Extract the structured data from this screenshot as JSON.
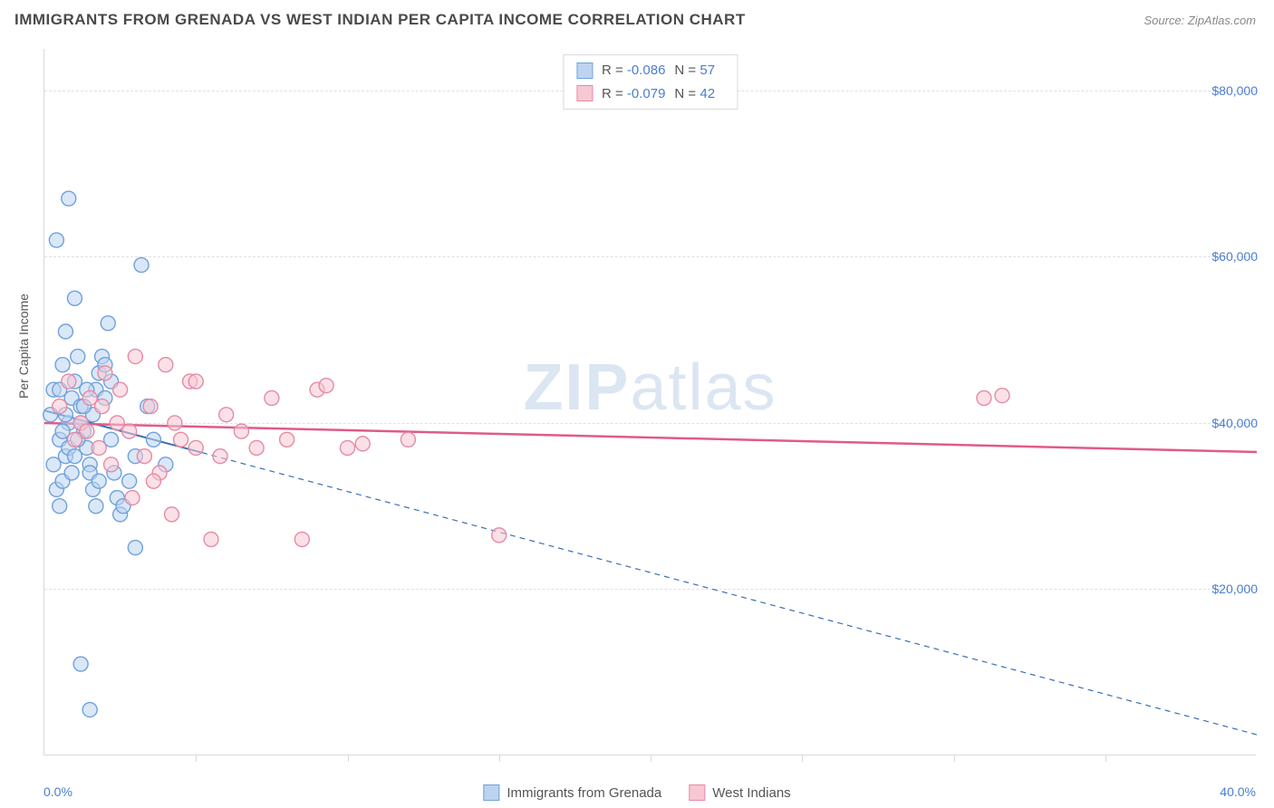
{
  "header": {
    "title": "IMMIGRANTS FROM GRENADA VS WEST INDIAN PER CAPITA INCOME CORRELATION CHART",
    "source": "Source: ZipAtlas.com"
  },
  "watermark": {
    "bold": "ZIP",
    "light": "atlas"
  },
  "chart": {
    "type": "scatter",
    "background_color": "#ffffff",
    "grid_color": "#e0e0e0",
    "axis_color": "#d9d9d9",
    "yaxis_title": "Per Capita Income",
    "xlim": [
      0,
      40
    ],
    "ylim": [
      0,
      85000
    ],
    "yticks": [
      {
        "v": 20000,
        "label": "$20,000"
      },
      {
        "v": 40000,
        "label": "$40,000"
      },
      {
        "v": 60000,
        "label": "$60,000"
      },
      {
        "v": 80000,
        "label": "$80,000"
      }
    ],
    "xticks_minor": [
      5,
      10,
      15,
      20,
      25,
      30,
      35
    ],
    "xaxis_labels": [
      {
        "v": 0,
        "label": "0.0%",
        "align": "left"
      },
      {
        "v": 40,
        "label": "40.0%",
        "align": "right"
      }
    ],
    "label_color": "#4a7dd1",
    "label_fontsize": 14,
    "marker_radius": 8,
    "marker_stroke_width": 1.4,
    "series": [
      {
        "id": "grenada",
        "name": "Immigrants from Grenada",
        "fill": "#bcd4f0",
        "stroke": "#6fa1dc",
        "fill_opacity": 0.55,
        "points": [
          [
            0.2,
            41000
          ],
          [
            0.3,
            44000
          ],
          [
            0.4,
            62000
          ],
          [
            0.5,
            38000
          ],
          [
            0.6,
            47000
          ],
          [
            0.7,
            51000
          ],
          [
            0.8,
            67000
          ],
          [
            0.3,
            35000
          ],
          [
            0.4,
            32000
          ],
          [
            0.5,
            30000
          ],
          [
            0.6,
            33000
          ],
          [
            0.7,
            36000
          ],
          [
            0.8,
            40000
          ],
          [
            0.9,
            43000
          ],
          [
            1.0,
            45000
          ],
          [
            1.1,
            48000
          ],
          [
            1.2,
            42000
          ],
          [
            1.3,
            39000
          ],
          [
            1.4,
            37000
          ],
          [
            1.5,
            35000
          ],
          [
            1.6,
            41000
          ],
          [
            1.7,
            44000
          ],
          [
            1.8,
            46000
          ],
          [
            1.9,
            48000
          ],
          [
            2.0,
            47000
          ],
          [
            2.1,
            52000
          ],
          [
            2.2,
            38000
          ],
          [
            2.3,
            34000
          ],
          [
            2.4,
            31000
          ],
          [
            2.5,
            29000
          ],
          [
            2.6,
            30000
          ],
          [
            2.8,
            33000
          ],
          [
            3.0,
            36000
          ],
          [
            3.2,
            59000
          ],
          [
            3.4,
            42000
          ],
          [
            3.6,
            38000
          ],
          [
            1.0,
            55000
          ],
          [
            1.2,
            11000
          ],
          [
            1.5,
            5500
          ],
          [
            0.5,
            44000
          ],
          [
            0.6,
            39000
          ],
          [
            0.7,
            41000
          ],
          [
            0.8,
            37000
          ],
          [
            0.9,
            34000
          ],
          [
            1.0,
            36000
          ],
          [
            1.1,
            38000
          ],
          [
            1.2,
            40000
          ],
          [
            1.3,
            42000
          ],
          [
            1.4,
            44000
          ],
          [
            1.5,
            34000
          ],
          [
            1.6,
            32000
          ],
          [
            1.7,
            30000
          ],
          [
            1.8,
            33000
          ],
          [
            2.0,
            43000
          ],
          [
            2.2,
            45000
          ],
          [
            3.0,
            25000
          ],
          [
            4.0,
            35000
          ]
        ],
        "trend": {
          "y_start": 41500,
          "y_end": 2500,
          "color": "#3b6fb5",
          "solid_until_x": 5.2,
          "width": 2
        }
      },
      {
        "id": "westindian",
        "name": "West Indians",
        "fill": "#f7c8d4",
        "stroke": "#e68aa4",
        "fill_opacity": 0.55,
        "points": [
          [
            0.5,
            42000
          ],
          [
            0.8,
            45000
          ],
          [
            1.0,
            38000
          ],
          [
            1.2,
            40000
          ],
          [
            1.5,
            43000
          ],
          [
            1.8,
            37000
          ],
          [
            2.0,
            46000
          ],
          [
            2.2,
            35000
          ],
          [
            2.5,
            44000
          ],
          [
            2.8,
            39000
          ],
          [
            3.0,
            48000
          ],
          [
            3.3,
            36000
          ],
          [
            3.5,
            42000
          ],
          [
            3.8,
            34000
          ],
          [
            4.0,
            47000
          ],
          [
            4.3,
            40000
          ],
          [
            4.5,
            38000
          ],
          [
            4.8,
            45000
          ],
          [
            5.0,
            37000
          ],
          [
            5.5,
            26000
          ],
          [
            5.8,
            36000
          ],
          [
            6.0,
            41000
          ],
          [
            6.5,
            39000
          ],
          [
            7.0,
            37000
          ],
          [
            7.5,
            43000
          ],
          [
            8.0,
            38000
          ],
          [
            8.5,
            26000
          ],
          [
            9.0,
            44000
          ],
          [
            9.3,
            44500
          ],
          [
            10.0,
            37000
          ],
          [
            10.5,
            37500
          ],
          [
            12.0,
            38000
          ],
          [
            15.0,
            26500
          ],
          [
            5.0,
            45000
          ],
          [
            4.2,
            29000
          ],
          [
            3.6,
            33000
          ],
          [
            2.9,
            31000
          ],
          [
            2.4,
            40000
          ],
          [
            1.9,
            42000
          ],
          [
            1.4,
            39000
          ],
          [
            31.0,
            43000
          ],
          [
            31.6,
            43300
          ]
        ],
        "trend": {
          "y_start": 40000,
          "y_end": 36500,
          "color": "#e05a8a",
          "width": 2.5
        }
      }
    ]
  },
  "legend_top": {
    "rows": [
      {
        "swatch_fill": "#bcd4f0",
        "swatch_stroke": "#6fa1dc",
        "r_label": "R =",
        "r_value": "-0.086",
        "n_label": "N =",
        "n_value": "57"
      },
      {
        "swatch_fill": "#f7c8d4",
        "swatch_stroke": "#e68aa4",
        "r_label": "R =",
        "r_value": "-0.079",
        "n_label": "N =",
        "n_value": "42"
      }
    ]
  },
  "legend_bottom": {
    "items": [
      {
        "swatch_fill": "#bcd4f0",
        "swatch_stroke": "#6fa1dc",
        "label": "Immigrants from Grenada"
      },
      {
        "swatch_fill": "#f7c8d4",
        "swatch_stroke": "#e68aa4",
        "label": "West Indians"
      }
    ]
  }
}
